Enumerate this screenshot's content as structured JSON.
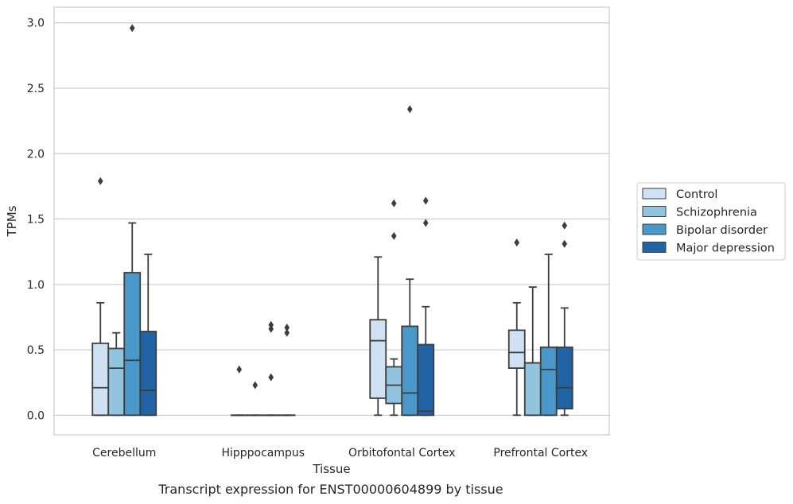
{
  "chart_data": {
    "type": "box",
    "caption": "Transcript expression for ENST00000604899 by tissue",
    "xlabel": "Tissue",
    "ylabel": "TPMs",
    "ylim": [
      -0.15,
      3.12
    ],
    "yticks": [
      "0.0",
      "0.5",
      "1.0",
      "1.5",
      "2.0",
      "2.5",
      "3.0"
    ],
    "grid": "horizontal",
    "legend_position": "right",
    "categories": [
      "Cerebellum",
      "Hipppocampus",
      "Orbitofontal Cortex",
      "Prefrontal Cortex"
    ],
    "series": [
      {
        "name": "Control",
        "color": "#cfe1f2",
        "boxes": [
          {
            "min": 0,
            "q1": 0,
            "median": 0.21,
            "q3": 0.55,
            "max": 0.86,
            "outliers": [
              1.79
            ]
          },
          {
            "min": 0,
            "q1": 0,
            "median": 0,
            "q3": 0,
            "max": 0,
            "outliers": [
              0.35
            ]
          },
          {
            "min": 0,
            "q1": 0.13,
            "median": 0.57,
            "q3": 0.73,
            "max": 1.21,
            "outliers": []
          },
          {
            "min": 0,
            "q1": 0.36,
            "median": 0.48,
            "q3": 0.65,
            "max": 0.86,
            "outliers": [
              1.32
            ]
          }
        ]
      },
      {
        "name": "Schizophrenia",
        "color": "#93c4de",
        "boxes": [
          {
            "min": 0,
            "q1": 0,
            "median": 0.36,
            "q3": 0.51,
            "max": 0.63,
            "outliers": []
          },
          {
            "min": 0,
            "q1": 0,
            "median": 0,
            "q3": 0,
            "max": 0,
            "outliers": [
              0.23
            ]
          },
          {
            "min": 0,
            "q1": 0.09,
            "median": 0.23,
            "q3": 0.37,
            "max": 0.43,
            "outliers": [
              1.37,
              1.62
            ]
          },
          {
            "min": 0,
            "q1": 0,
            "median": 0.4,
            "q3": 0.4,
            "max": 0.98,
            "outliers": []
          }
        ]
      },
      {
        "name": "Bipolar disorder",
        "color": "#4a98c9",
        "boxes": [
          {
            "min": 0,
            "q1": 0,
            "median": 0.42,
            "q3": 1.09,
            "max": 1.47,
            "outliers": [
              2.96
            ]
          },
          {
            "min": 0,
            "q1": 0,
            "median": 0,
            "q3": 0,
            "max": 0,
            "outliers": [
              0.29,
              0.66,
              0.69
            ]
          },
          {
            "min": 0,
            "q1": 0,
            "median": 0.17,
            "q3": 0.68,
            "max": 1.04,
            "outliers": [
              2.34
            ]
          },
          {
            "min": 0,
            "q1": 0,
            "median": 0.35,
            "q3": 0.52,
            "max": 1.23,
            "outliers": []
          }
        ]
      },
      {
        "name": "Major depression",
        "color": "#2164a6",
        "boxes": [
          {
            "min": 0,
            "q1": 0,
            "median": 0.19,
            "q3": 0.64,
            "max": 1.23,
            "outliers": []
          },
          {
            "min": 0,
            "q1": 0,
            "median": 0,
            "q3": 0,
            "max": 0,
            "outliers": [
              0.63,
              0.67
            ]
          },
          {
            "min": 0,
            "q1": 0,
            "median": 0.03,
            "q3": 0.54,
            "max": 0.83,
            "outliers": [
              1.47,
              1.64
            ]
          },
          {
            "min": 0,
            "q1": 0.05,
            "median": 0.21,
            "q3": 0.52,
            "max": 0.82,
            "outliers": [
              1.31,
              1.45
            ]
          }
        ]
      }
    ]
  }
}
